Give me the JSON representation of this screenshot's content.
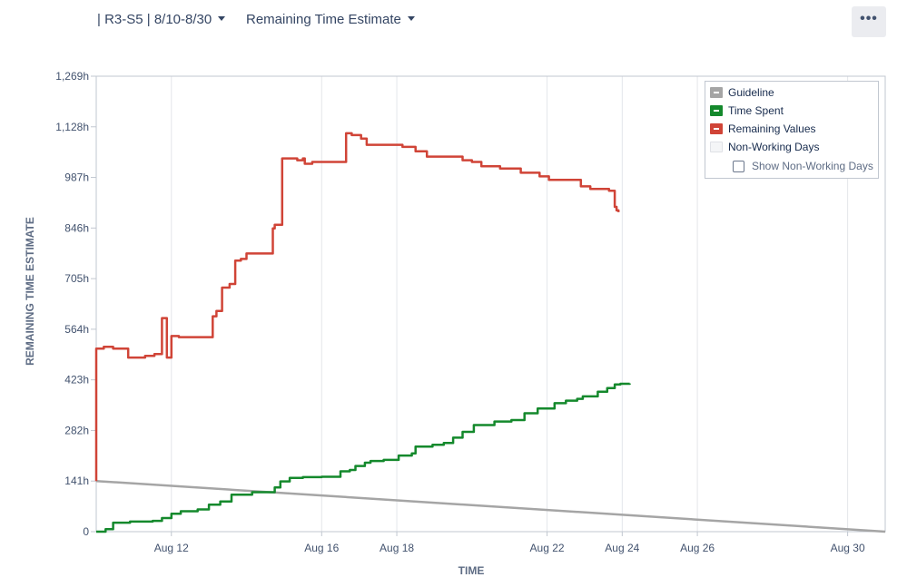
{
  "header": {
    "sprint_selector": "| R3-S5 | 8/10-8/30",
    "report_selector": "Remaining Time Estimate",
    "more_label": "•••"
  },
  "legend": {
    "items": [
      {
        "label": "Guideline",
        "color": "#a5a5a5"
      },
      {
        "label": "Time Spent",
        "color": "#14892c"
      },
      {
        "label": "Remaining Values",
        "color": "#d04437"
      },
      {
        "label": "Non-Working Days",
        "color": "#f4f5f7"
      }
    ],
    "show_non_working_days": "Show Non-Working Days"
  },
  "chart_data": {
    "type": "line",
    "xlabel": "TIME",
    "ylabel": "REMAINING TIME ESTIMATE",
    "x_domain": [
      "Aug 10",
      "Aug 31"
    ],
    "ylim": [
      0,
      1269
    ],
    "y_ticks": [
      0,
      141,
      282,
      423,
      564,
      705,
      846,
      987,
      1128,
      1269
    ],
    "y_tick_labels": [
      "0",
      "141h",
      "282h",
      "423h",
      "564h",
      "705h",
      "846h",
      "987h",
      "1,128h",
      "1,269h"
    ],
    "x_ticks": [
      {
        "day": 12,
        "label": "Aug 12"
      },
      {
        "day": 16,
        "label": "Aug 16"
      },
      {
        "day": 18,
        "label": "Aug 18"
      },
      {
        "day": 22,
        "label": "Aug 22"
      },
      {
        "day": 24,
        "label": "Aug 24"
      },
      {
        "day": 26,
        "label": "Aug 26"
      },
      {
        "day": 30,
        "label": "Aug 30"
      }
    ],
    "grid": "x-only",
    "legend_position": "top-right",
    "series": [
      {
        "name": "Guideline",
        "color": "#a5a5a5",
        "step": false,
        "points": [
          [
            10.0,
            141
          ],
          [
            31.0,
            0
          ]
        ]
      },
      {
        "name": "Time Spent",
        "color": "#14892c",
        "step": true,
        "points": [
          [
            10.0,
            0
          ],
          [
            10.25,
            7
          ],
          [
            10.45,
            25
          ],
          [
            10.9,
            28
          ],
          [
            11.5,
            30
          ],
          [
            11.75,
            38
          ],
          [
            12.0,
            50
          ],
          [
            12.25,
            57
          ],
          [
            12.7,
            62
          ],
          [
            13.0,
            75
          ],
          [
            13.3,
            84
          ],
          [
            13.6,
            103
          ],
          [
            14.15,
            110
          ],
          [
            14.75,
            123
          ],
          [
            14.9,
            140
          ],
          [
            15.15,
            150
          ],
          [
            15.5,
            152
          ],
          [
            16.0,
            153
          ],
          [
            16.5,
            168
          ],
          [
            16.75,
            172
          ],
          [
            16.9,
            183
          ],
          [
            17.15,
            192
          ],
          [
            17.3,
            197
          ],
          [
            17.65,
            200
          ],
          [
            18.05,
            212
          ],
          [
            18.4,
            218
          ],
          [
            18.5,
            237
          ],
          [
            18.95,
            242
          ],
          [
            19.25,
            247
          ],
          [
            19.5,
            262
          ],
          [
            19.75,
            278
          ],
          [
            20.05,
            297
          ],
          [
            20.6,
            307
          ],
          [
            21.05,
            311
          ],
          [
            21.4,
            330
          ],
          [
            21.75,
            343
          ],
          [
            22.2,
            358
          ],
          [
            22.5,
            365
          ],
          [
            22.8,
            370
          ],
          [
            22.95,
            377
          ],
          [
            23.35,
            390
          ],
          [
            23.6,
            400
          ],
          [
            23.8,
            410
          ],
          [
            23.95,
            412
          ],
          [
            24.2,
            413
          ]
        ]
      },
      {
        "name": "Remaining Values",
        "color": "#d04437",
        "step": true,
        "points": [
          [
            10.0,
            141
          ],
          [
            10.0,
            510
          ],
          [
            10.2,
            515
          ],
          [
            10.45,
            510
          ],
          [
            10.85,
            485
          ],
          [
            11.3,
            490
          ],
          [
            11.55,
            495
          ],
          [
            11.75,
            595
          ],
          [
            11.88,
            485
          ],
          [
            12.0,
            545
          ],
          [
            12.2,
            542
          ],
          [
            13.0,
            542
          ],
          [
            13.1,
            600
          ],
          [
            13.2,
            615
          ],
          [
            13.35,
            680
          ],
          [
            13.55,
            690
          ],
          [
            13.7,
            755
          ],
          [
            13.85,
            760
          ],
          [
            14.0,
            775
          ],
          [
            14.6,
            775
          ],
          [
            14.7,
            845
          ],
          [
            14.75,
            855
          ],
          [
            14.95,
            1040
          ],
          [
            15.35,
            1035
          ],
          [
            15.5,
            1040
          ],
          [
            15.55,
            1025
          ],
          [
            15.75,
            1030
          ],
          [
            16.5,
            1030
          ],
          [
            16.65,
            1110
          ],
          [
            16.8,
            1105
          ],
          [
            17.05,
            1095
          ],
          [
            17.2,
            1078
          ],
          [
            18.15,
            1072
          ],
          [
            18.5,
            1060
          ],
          [
            18.8,
            1045
          ],
          [
            19.75,
            1035
          ],
          [
            20.0,
            1030
          ],
          [
            20.25,
            1018
          ],
          [
            20.75,
            1012
          ],
          [
            21.3,
            1000
          ],
          [
            21.8,
            990
          ],
          [
            22.05,
            980
          ],
          [
            22.9,
            962
          ],
          [
            23.15,
            955
          ],
          [
            23.65,
            950
          ],
          [
            23.8,
            905
          ],
          [
            23.85,
            895
          ],
          [
            23.9,
            890
          ]
        ]
      }
    ]
  }
}
